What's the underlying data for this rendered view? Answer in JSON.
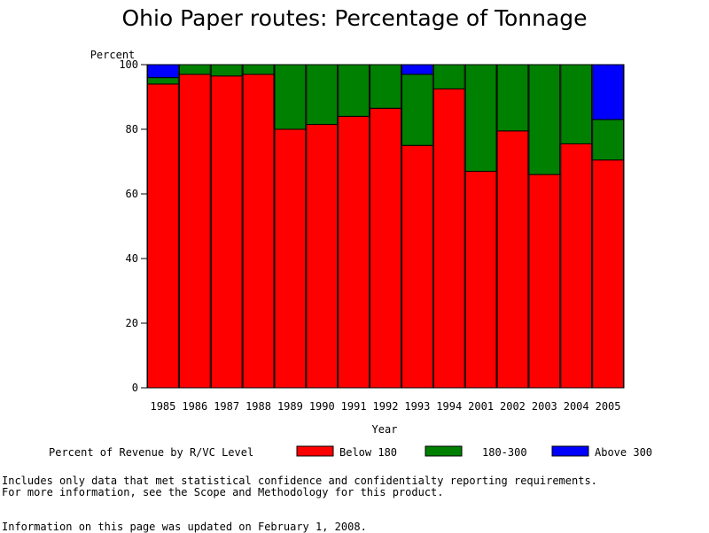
{
  "chart_data": {
    "type": "bar",
    "stacked": true,
    "title": "Ohio Paper routes: Percentage of Tonnage",
    "ylabel": "Percent",
    "xlabel": "Year",
    "ylim": [
      0,
      100
    ],
    "yticks": [
      "0",
      "20",
      "40",
      "60",
      "80",
      "100"
    ],
    "categories": [
      "1985",
      "1986",
      "1987",
      "1988",
      "1989",
      "1990",
      "1991",
      "1992",
      "1993",
      "1994",
      "2001",
      "2002",
      "2003",
      "2004",
      "2005"
    ],
    "legend_title": "Percent of Revenue by R/VC Level",
    "legend_position": "bottom",
    "series": [
      {
        "name": "Below 180",
        "color": "#ff0000",
        "values": [
          94,
          97,
          96.5,
          97,
          80,
          81.5,
          84,
          86.5,
          75,
          92.5,
          67,
          79.5,
          66,
          75.5,
          70.5
        ]
      },
      {
        "name": "180-300",
        "color": "#008000",
        "values": [
          2,
          3,
          3.5,
          3,
          20,
          18.5,
          16,
          13.5,
          22,
          7.5,
          33,
          20.5,
          34,
          24.5,
          12.5
        ]
      },
      {
        "name": "Above 300",
        "color": "#0000ff",
        "values": [
          4,
          0,
          0,
          0,
          0,
          0,
          0,
          0,
          3,
          0,
          0,
          0,
          0,
          0,
          17
        ]
      }
    ]
  },
  "footnotes": {
    "line1": "Includes only data that met statistical confidence and confidentialty reporting requirements.",
    "line2": "For more information, see the Scope and Methodology for this product.",
    "line3": "Information on this page was updated on February 1, 2008."
  }
}
